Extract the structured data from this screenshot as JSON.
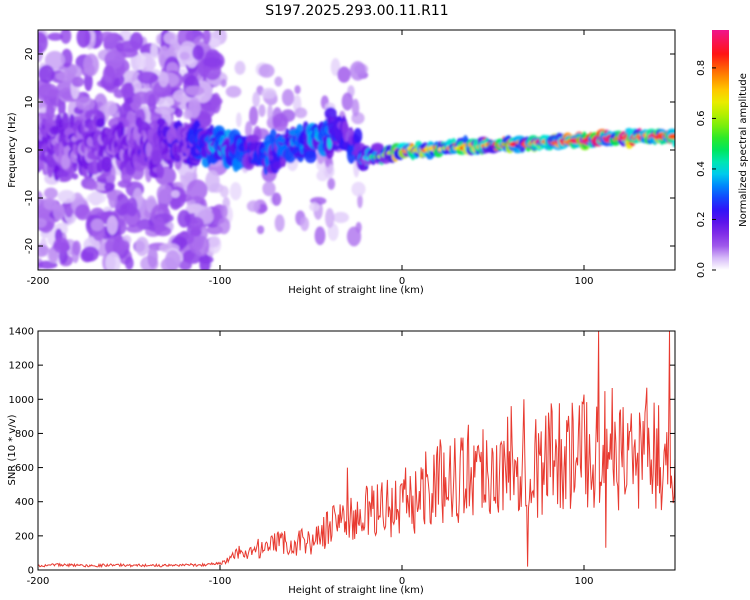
{
  "title": "S197.2025.293.00.11.R11",
  "colors": {
    "snr_line": "#e83a30",
    "axis": "#000000"
  },
  "chart_data": [
    {
      "type": "heatmap",
      "xlabel": "Height of straight line (km)",
      "ylabel": "Frequency (Hz)",
      "xlim": [
        -200,
        150
      ],
      "ylim": [
        -25,
        25
      ],
      "xticks": [
        -200,
        -100,
        0,
        100
      ],
      "yticks": [
        -20,
        -10,
        0,
        10,
        20
      ],
      "colorbar": {
        "label": "Normalized spectral amplitude",
        "range": [
          0,
          0.95
        ],
        "ticks": [
          0.0,
          0.2,
          0.4,
          0.6,
          0.8
        ],
        "tick_labels": [
          "0.0",
          "0.2",
          "0.4",
          "0.6",
          "0.8"
        ]
      },
      "ridge": {
        "x": [
          -200,
          -150,
          -120,
          -100,
          -90,
          -80,
          -70,
          -60,
          -50,
          -40,
          -35,
          -30,
          -20,
          -10,
          0,
          10,
          20,
          40,
          60,
          80,
          100,
          120,
          150
        ],
        "freq": [
          1,
          1,
          1,
          1.5,
          0,
          -1,
          0,
          1,
          2,
          4,
          4,
          3,
          -2,
          -1,
          0,
          0,
          0.3,
          0.8,
          1.2,
          1.6,
          2.0,
          2.5,
          3.0
        ],
        "amplitude": [
          0.15,
          0.16,
          0.2,
          0.35,
          0.3,
          0.25,
          0.3,
          0.3,
          0.35,
          0.35,
          0.3,
          0.2,
          0.35,
          0.5,
          0.7,
          0.75,
          0.7,
          0.75,
          0.8,
          0.8,
          0.9,
          0.9,
          0.85
        ],
        "spread_hz": [
          6,
          5,
          4,
          3,
          3,
          3,
          3,
          3,
          3,
          3,
          3,
          3,
          2,
          1.5,
          1,
          1,
          1,
          1,
          1,
          1,
          1,
          1,
          1
        ]
      }
    },
    {
      "type": "line",
      "series": [
        {
          "name": "SNR",
          "x": [
            -200,
            -190,
            -180,
            -170,
            -160,
            -150,
            -140,
            -130,
            -120,
            -110,
            -100,
            -95,
            -90,
            -85,
            -80,
            -75,
            -70,
            -65,
            -60,
            -55,
            -50,
            -45,
            -40,
            -35,
            -30,
            -25,
            -20,
            -15,
            -10,
            -5,
            0,
            5,
            10,
            15,
            20,
            25,
            30,
            35,
            40,
            45,
            50,
            55,
            60,
            65,
            70,
            75,
            80,
            85,
            90,
            95,
            100,
            105,
            110,
            115,
            120,
            125,
            130,
            135,
            140,
            145,
            148,
            150
          ],
          "values": [
            25,
            30,
            28,
            25,
            30,
            27,
            28,
            25,
            30,
            30,
            40,
            60,
            100,
            80,
            130,
            110,
            150,
            170,
            130,
            180,
            160,
            200,
            250,
            320,
            300,
            280,
            350,
            320,
            400,
            350,
            420,
            380,
            450,
            520,
            500,
            560,
            540,
            580,
            600,
            620,
            580,
            550,
            650,
            700,
            620,
            600,
            650,
            720,
            680,
            650,
            700,
            680,
            760,
            720,
            680,
            700,
            650,
            720,
            700,
            600,
            580,
            650
          ],
          "peaks": [
            {
              "x": -30,
              "y": 600
            },
            {
              "x": 60,
              "y": 960
            },
            {
              "x": 67,
              "y": 1000
            },
            {
              "x": 108,
              "y": 1400
            },
            {
              "x": 112,
              "y": 130
            },
            {
              "x": 147,
              "y": 1400
            },
            {
              "x": 69,
              "y": 20
            }
          ]
        }
      ],
      "xlabel": "Height of straight line (km)",
      "ylabel": "SNR (10 * v/v)",
      "xlim": [
        -200,
        150
      ],
      "ylim": [
        0,
        1400
      ],
      "xticks": [
        -200,
        -100,
        0,
        100
      ],
      "yticks": [
        0,
        200,
        400,
        600,
        800,
        1000,
        1200,
        1400
      ]
    }
  ]
}
